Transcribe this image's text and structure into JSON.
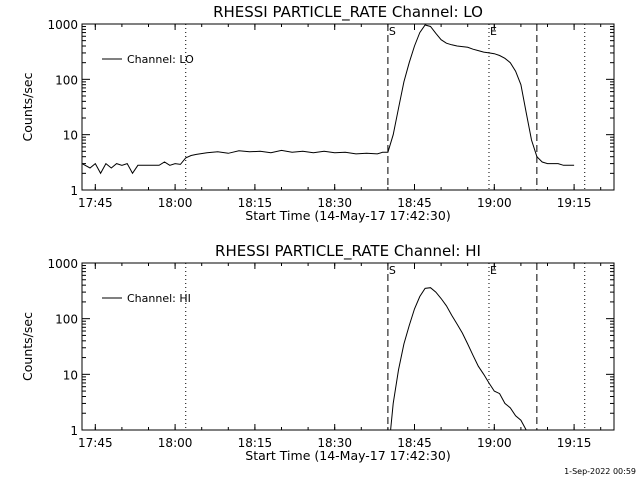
{
  "footer_timestamp": "1-Sep-2022 00:59",
  "chart_data": [
    {
      "type": "line",
      "title": "RHESSI PARTICLE_RATE Channel: LO",
      "xlabel": "Start Time (14-May-17 17:42:30)",
      "ylabel": "Counts/sec",
      "yscale": "log",
      "xlim": [
        "17:42:30",
        "19:22:30"
      ],
      "ylim": [
        1,
        1000
      ],
      "x_ticks": [
        "17:45",
        "18:00",
        "18:15",
        "18:30",
        "18:45",
        "19:00",
        "19:15"
      ],
      "y_ticks": [
        "1",
        "10",
        "100",
        "1000"
      ],
      "legend": {
        "label": "Channel: LO",
        "placement": "top-left"
      },
      "markers": [
        {
          "time": "18:02",
          "style": "dotted",
          "label": ""
        },
        {
          "time": "18:40",
          "style": "dashed",
          "label": "S"
        },
        {
          "time": "18:59",
          "style": "dotted",
          "label": "E"
        },
        {
          "time": "19:08",
          "style": "dashed",
          "label": ""
        },
        {
          "time": "19:17",
          "style": "dotted",
          "label": ""
        }
      ],
      "series": [
        {
          "name": "Channel: LO",
          "points": [
            [
              "17:42:30",
              3
            ],
            [
              "17:44",
              2.5
            ],
            [
              "17:45",
              3
            ],
            [
              "17:46",
              2
            ],
            [
              "17:47",
              3
            ],
            [
              "17:48",
              2.5
            ],
            [
              "17:49",
              3
            ],
            [
              "17:50",
              2.8
            ],
            [
              "17:51",
              3
            ],
            [
              "17:52",
              2
            ],
            [
              "17:53",
              2.8
            ],
            [
              "17:55",
              2.8
            ],
            [
              "17:57",
              2.8
            ],
            [
              "17:58",
              3.2
            ],
            [
              "17:59",
              2.8
            ],
            [
              "18:00",
              3
            ],
            [
              "18:01",
              2.9
            ],
            [
              "18:02",
              3.8
            ],
            [
              "18:03",
              4.2
            ],
            [
              "18:04",
              4.4
            ],
            [
              "18:06",
              4.7
            ],
            [
              "18:08",
              4.9
            ],
            [
              "18:10",
              4.6
            ],
            [
              "18:12",
              5.1
            ],
            [
              "18:14",
              4.9
            ],
            [
              "18:16",
              5
            ],
            [
              "18:18",
              4.7
            ],
            [
              "18:20",
              5.2
            ],
            [
              "18:22",
              4.8
            ],
            [
              "18:24",
              5
            ],
            [
              "18:26",
              4.7
            ],
            [
              "18:28",
              5
            ],
            [
              "18:30",
              4.7
            ],
            [
              "18:32",
              4.8
            ],
            [
              "18:34",
              4.5
            ],
            [
              "18:36",
              4.6
            ],
            [
              "18:38",
              4.5
            ],
            [
              "18:39",
              4.8
            ],
            [
              "18:40",
              4.8
            ],
            [
              "18:41",
              10
            ],
            [
              "18:42",
              30
            ],
            [
              "18:43",
              90
            ],
            [
              "18:44",
              200
            ],
            [
              "18:45",
              400
            ],
            [
              "18:46",
              700
            ],
            [
              "18:47",
              960
            ],
            [
              "18:48",
              900
            ],
            [
              "18:49",
              680
            ],
            [
              "18:50",
              520
            ],
            [
              "18:51",
              450
            ],
            [
              "18:52",
              420
            ],
            [
              "18:53",
              400
            ],
            [
              "18:54",
              390
            ],
            [
              "18:55",
              380
            ],
            [
              "18:56",
              350
            ],
            [
              "18:57",
              330
            ],
            [
              "18:58",
              310
            ],
            [
              "18:59",
              300
            ],
            [
              "19:00",
              290
            ],
            [
              "19:01",
              270
            ],
            [
              "19:02",
              240
            ],
            [
              "19:03",
              200
            ],
            [
              "19:04",
              140
            ],
            [
              "19:05",
              80
            ],
            [
              "19:06",
              25
            ],
            [
              "19:07",
              8
            ],
            [
              "19:08",
              4
            ],
            [
              "19:09",
              3.2
            ],
            [
              "19:10",
              3
            ],
            [
              "19:11",
              3
            ],
            [
              "19:12",
              3
            ],
            [
              "19:13",
              2.8
            ],
            [
              "19:14",
              2.8
            ],
            [
              "19:15",
              2.8
            ]
          ]
        }
      ]
    },
    {
      "type": "line",
      "title": "RHESSI PARTICLE_RATE Channel: HI",
      "xlabel": "Start Time (14-May-17 17:42:30)",
      "ylabel": "Counts/sec",
      "yscale": "log",
      "xlim": [
        "17:42:30",
        "19:22:30"
      ],
      "ylim": [
        1,
        1000
      ],
      "x_ticks": [
        "17:45",
        "18:00",
        "18:15",
        "18:30",
        "18:45",
        "19:00",
        "19:15"
      ],
      "y_ticks": [
        "1",
        "10",
        "100",
        "1000"
      ],
      "legend": {
        "label": "Channel: HI",
        "placement": "top-left"
      },
      "markers": [
        {
          "time": "18:02",
          "style": "dotted",
          "label": ""
        },
        {
          "time": "18:40",
          "style": "dashed",
          "label": "S"
        },
        {
          "time": "18:59",
          "style": "dotted",
          "label": "E"
        },
        {
          "time": "19:08",
          "style": "dashed",
          "label": ""
        },
        {
          "time": "19:17",
          "style": "dotted",
          "label": ""
        }
      ],
      "series": [
        {
          "name": "Channel: HI",
          "points": [
            [
              "18:40:30",
              1
            ],
            [
              "18:41",
              3
            ],
            [
              "18:42",
              12
            ],
            [
              "18:43",
              35
            ],
            [
              "18:44",
              75
            ],
            [
              "18:45",
              150
            ],
            [
              "18:46",
              250
            ],
            [
              "18:47",
              350
            ],
            [
              "18:48",
              360
            ],
            [
              "18:49",
              300
            ],
            [
              "18:50",
              230
            ],
            [
              "18:51",
              170
            ],
            [
              "18:52",
              115
            ],
            [
              "18:53",
              80
            ],
            [
              "18:54",
              55
            ],
            [
              "18:55",
              35
            ],
            [
              "18:56",
              22
            ],
            [
              "18:57",
              14
            ],
            [
              "18:58",
              10
            ],
            [
              "18:59",
              7
            ],
            [
              "19:00",
              5
            ],
            [
              "19:01",
              4.5
            ],
            [
              "19:02",
              3
            ],
            [
              "19:03",
              2.5
            ],
            [
              "19:04",
              1.8
            ],
            [
              "19:05",
              1.5
            ],
            [
              "19:06",
              1
            ]
          ]
        }
      ]
    }
  ]
}
